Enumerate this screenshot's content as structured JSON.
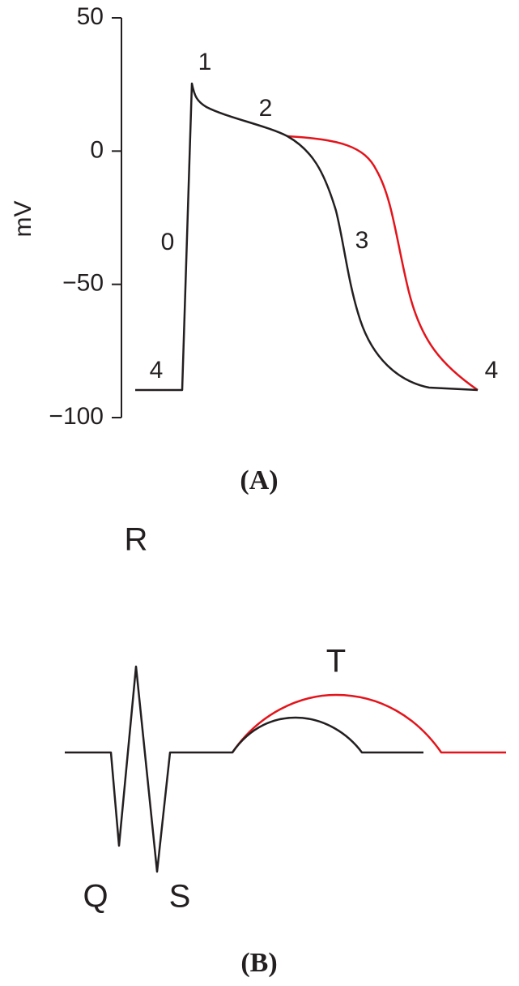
{
  "panel_a": {
    "y_label": "mV",
    "ylim": [
      -100,
      50
    ],
    "yticks": [
      50,
      0,
      {
        "value": -50,
        "label": "−50"
      },
      {
        "value": -100,
        "label": "−100"
      }
    ],
    "phase_labels": [
      "0",
      "1",
      "2",
      "3",
      "4",
      "4"
    ],
    "caption": "(A)"
  },
  "panel_b": {
    "waves": [
      "R",
      "Q",
      "S",
      "T"
    ],
    "caption": "(B)"
  }
}
